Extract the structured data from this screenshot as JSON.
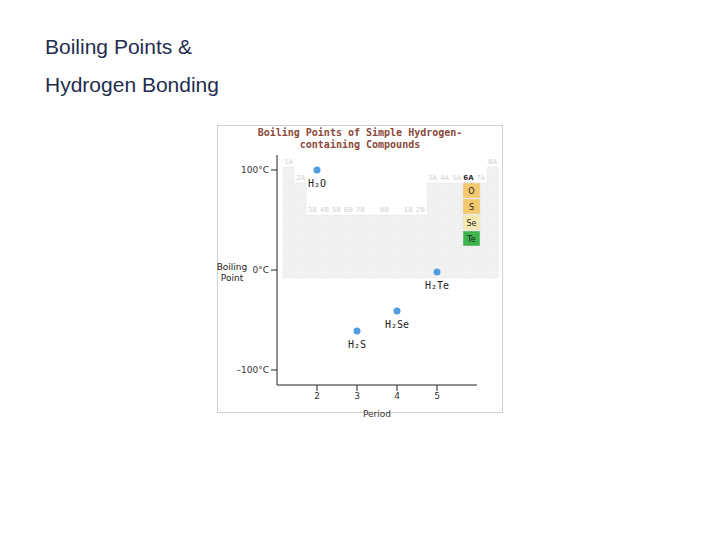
{
  "slide": {
    "title": "Boiling Points & Hydrogen Bonding"
  },
  "chart_data": {
    "type": "scatter",
    "title": "Boiling Points of Simple Hydrogen-containing Compounds",
    "x": [
      2,
      3,
      4,
      5
    ],
    "values": [
      100,
      -61,
      -41,
      -2
    ],
    "labels": [
      "H₂O",
      "H₂S",
      "H₂Se",
      "H₂Te"
    ],
    "color": "#4f9fe0",
    "marker": "circle",
    "xlabel": "Period",
    "ylabel": "Boiling Point",
    "xlim": [
      1,
      6
    ],
    "ylim": [
      -115,
      115
    ],
    "xticks": [
      2,
      3,
      4,
      5
    ],
    "yticks": [
      {
        "value": 100,
        "label": "100°C"
      },
      {
        "value": 0,
        "label": "0°C"
      },
      {
        "value": -100,
        "label": "–100°C"
      }
    ]
  },
  "periodic_table_inset": {
    "group_labels": [
      "1A",
      "2A",
      "3B",
      "4B",
      "5B",
      "6B",
      "7B",
      "8B",
      "1B",
      "2B",
      "3A",
      "4A",
      "5A",
      "6A",
      "7A",
      "8A"
    ],
    "highlight_group": "6A",
    "elements": [
      {
        "symbol": "O",
        "color": "#f4c86c"
      },
      {
        "symbol": "S",
        "color": "#f4c86c"
      },
      {
        "symbol": "Se",
        "color": "#f6eab0"
      },
      {
        "symbol": "Te",
        "color": "#3cb44b"
      }
    ]
  }
}
